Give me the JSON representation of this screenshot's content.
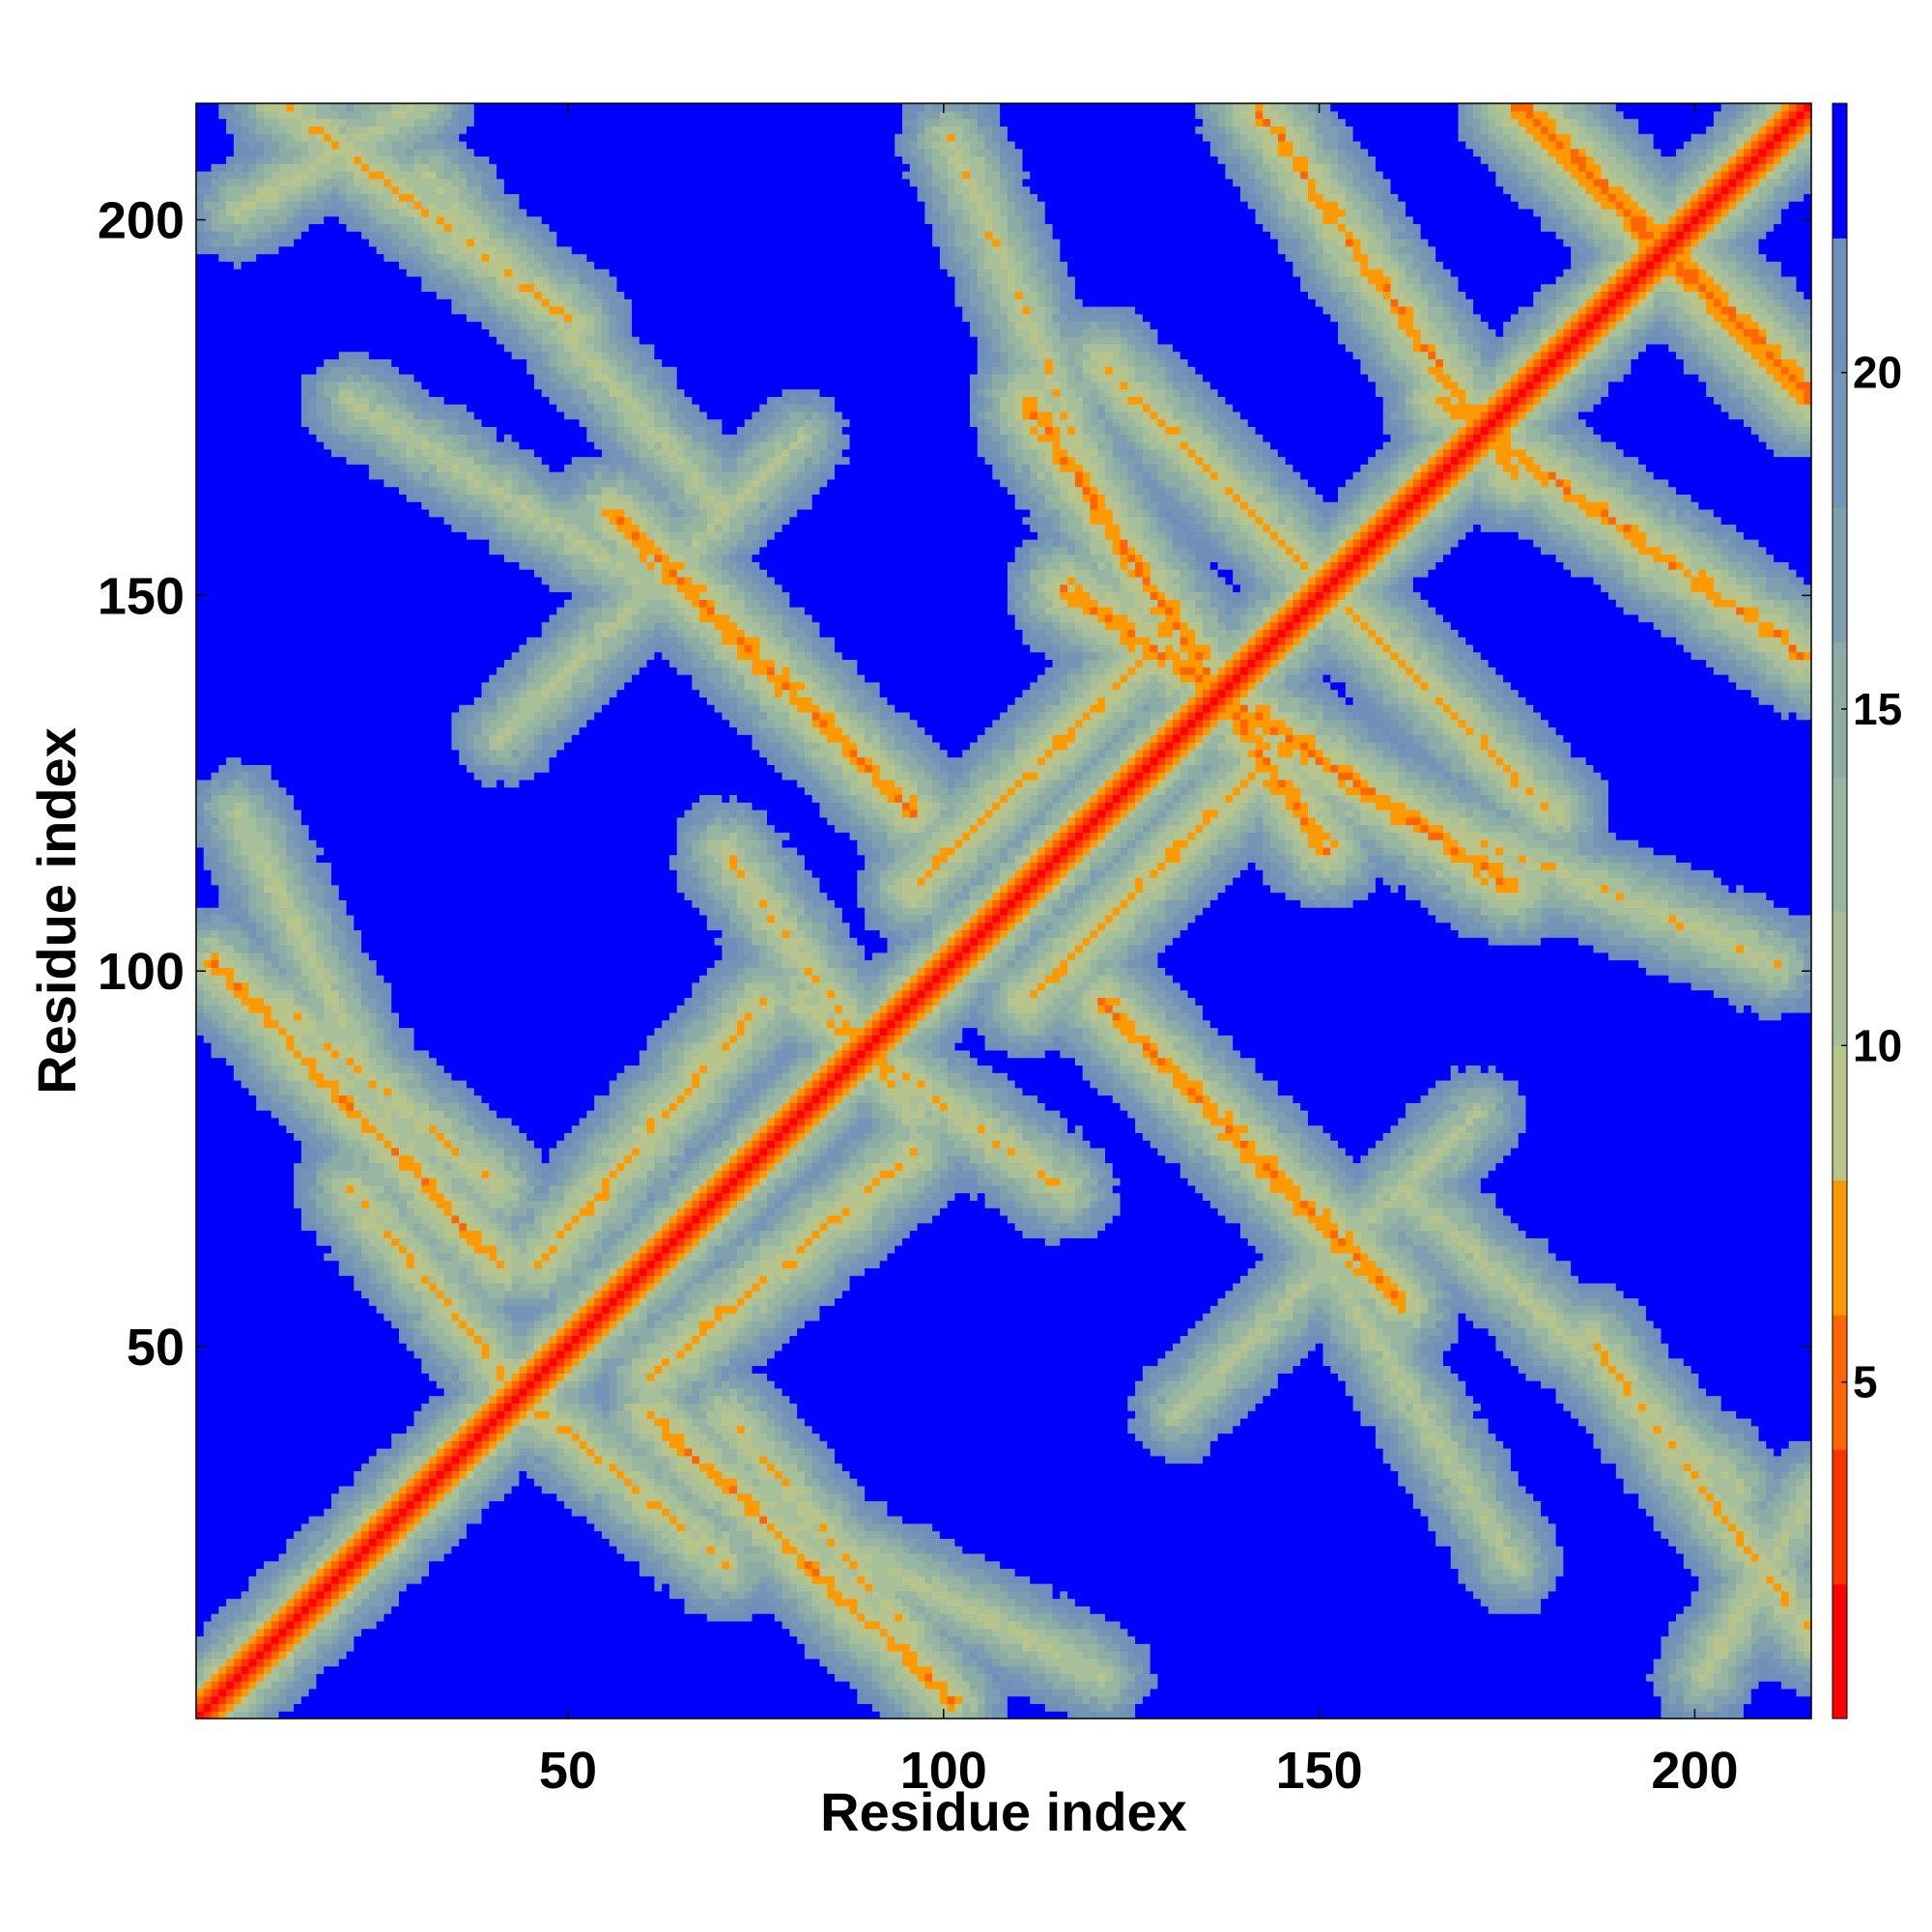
{
  "chart_data": {
    "type": "heatmap",
    "title": "",
    "xlabel": "Residue index",
    "ylabel": "Residue index",
    "xlim": [
      1,
      215
    ],
    "ylim": [
      1,
      215
    ],
    "xticks": [
      50,
      100,
      150,
      200
    ],
    "yticks": [
      50,
      100,
      150,
      200
    ],
    "colorbar": {
      "ticks": [
        5,
        10,
        15,
        20
      ],
      "range": [
        0,
        24
      ],
      "bins": [
        {
          "from": 0,
          "to": 2,
          "color": "#ff0000"
        },
        {
          "from": 2,
          "to": 4,
          "color": "#ff3300"
        },
        {
          "from": 4,
          "to": 6,
          "color": "#ff6600"
        },
        {
          "from": 6,
          "to": 8,
          "color": "#ff9900"
        },
        {
          "from": 8,
          "to": 10,
          "color": "#b7c58c"
        },
        {
          "from": 10,
          "to": 12,
          "color": "#a8c09a"
        },
        {
          "from": 12,
          "to": 14,
          "color": "#97b5a1"
        },
        {
          "from": 14,
          "to": 16,
          "color": "#8daca6"
        },
        {
          "from": 16,
          "to": 18,
          "color": "#7f9fb0"
        },
        {
          "from": 18,
          "to": 20,
          "color": "#7495b5"
        },
        {
          "from": 20,
          "to": 22,
          "color": "#6f8fba"
        },
        {
          "from": 22,
          "to": 24,
          "color": "#0000ff"
        }
      ]
    },
    "matrix": {
      "n": 215,
      "symmetric": true,
      "value_meaning": "distance between residue i and residue j",
      "max_value": 24,
      "diagonal_band": {
        "red_width": 2,
        "orange_width": 4,
        "green_width": 9
      },
      "contact_bands": [
        {
          "i_range": [
            2,
            40
          ],
          "j_range": [
            60,
            100
          ],
          "direction": "anti",
          "min": 5.5
        },
        {
          "i_range": [
            20,
            45
          ],
          "j_range": [
            40,
            70
          ],
          "direction": "anti",
          "min": 6.5
        },
        {
          "i_range": [
            55,
            95
          ],
          "j_range": [
            120,
            160
          ],
          "direction": "anti",
          "min": 5.0
        },
        {
          "i_range": [
            70,
            95
          ],
          "j_range": [
            80,
            115
          ],
          "direction": "anti",
          "min": 7.0
        },
        {
          "i_range": [
            110,
            150
          ],
          "j_range": [
            115,
            175
          ],
          "direction": "anti",
          "min": 5.0
        },
        {
          "i_range": [
            140,
            175
          ],
          "j_range": [
            165,
            215
          ],
          "direction": "anti",
          "min": 5.5
        },
        {
          "i_range": [
            175,
            215
          ],
          "j_range": [
            175,
            215
          ],
          "direction": "anti",
          "min": 4.0
        },
        {
          "i_range": [
            45,
            75
          ],
          "j_range": [
            60,
            95
          ],
          "direction": "parallel",
          "min": 6.0
        },
        {
          "i_range": [
            95,
            130
          ],
          "j_range": [
            110,
            145
          ],
          "direction": "parallel",
          "min": 6.0
        },
        {
          "i_range": [
            5,
            30
          ],
          "j_range": [
            200,
            215
          ],
          "direction": "parallel",
          "min": 8.0
        },
        {
          "i_range": [
            30,
            70
          ],
          "j_range": [
            160,
            205
          ],
          "direction": "anti",
          "min": 8.0
        },
        {
          "i_range": [
            100,
            125
          ],
          "j_range": [
            150,
            210
          ],
          "direction": "anti",
          "min": 7.5
        },
        {
          "i_range": [
            130,
            170
          ],
          "j_range": [
            40,
            80
          ],
          "direction": "parallel",
          "min": 8.5
        },
        {
          "i_range": [
            185,
            215
          ],
          "j_range": [
            10,
            50
          ],
          "direction": "anti",
          "min": 6.5
        },
        {
          "i_range": [
            150,
            175
          ],
          "j_range": [
            20,
            60
          ],
          "direction": "anti",
          "min": 8.5
        },
        {
          "i_range": [
            70,
            95
          ],
          "j_range": [
            10,
            40
          ],
          "direction": "anti",
          "min": 7.0
        },
        {
          "i_range": [
            5,
            25
          ],
          "j_range": [
            80,
            120
          ],
          "direction": "anti",
          "min": 8.0
        },
        {
          "i_range": [
            120,
            150
          ],
          "j_range": [
            150,
            180
          ],
          "direction": "anti",
          "min": 6.0
        }
      ]
    }
  }
}
